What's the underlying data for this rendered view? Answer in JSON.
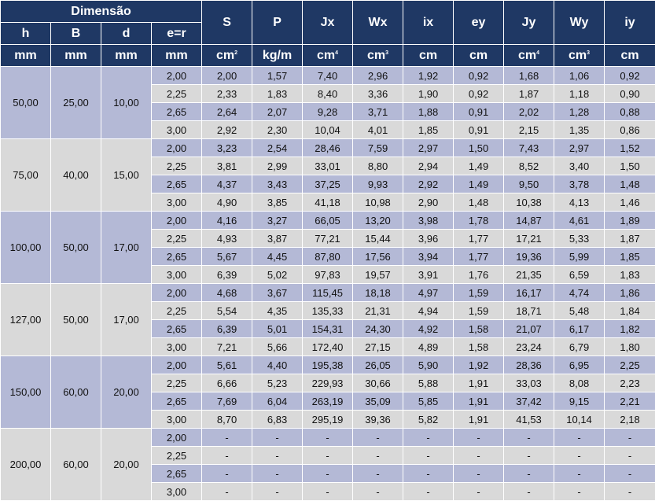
{
  "header": {
    "dimensao": "Dimensão",
    "props": [
      "S",
      "P",
      "Jx",
      "Wx",
      "ix",
      "ey",
      "Jy",
      "Wy",
      "iy"
    ],
    "dims": [
      "h",
      "B",
      "d",
      "e=r"
    ],
    "dim_units": [
      "mm",
      "mm",
      "mm",
      "mm"
    ],
    "prop_units": [
      {
        "base": "cm",
        "sup": "2"
      },
      {
        "base": "kg/m",
        "sup": ""
      },
      {
        "base": "cm",
        "sup": "4"
      },
      {
        "base": "cm",
        "sup": "3"
      },
      {
        "base": "cm",
        "sup": ""
      },
      {
        "base": "cm",
        "sup": ""
      },
      {
        "base": "cm",
        "sup": "4"
      },
      {
        "base": "cm",
        "sup": "3"
      },
      {
        "base": "cm",
        "sup": ""
      }
    ]
  },
  "groups": [
    {
      "h": "50,00",
      "B": "25,00",
      "d": "10,00",
      "rows": [
        {
          "e": "2,00",
          "v": [
            "2,00",
            "1,57",
            "7,40",
            "2,96",
            "1,92",
            "0,92",
            "1,68",
            "1,06",
            "0,92"
          ]
        },
        {
          "e": "2,25",
          "v": [
            "2,33",
            "1,83",
            "8,40",
            "3,36",
            "1,90",
            "0,92",
            "1,87",
            "1,18",
            "0,90"
          ]
        },
        {
          "e": "2,65",
          "v": [
            "2,64",
            "2,07",
            "9,28",
            "3,71",
            "1,88",
            "0,91",
            "2,02",
            "1,28",
            "0,88"
          ]
        },
        {
          "e": "3,00",
          "v": [
            "2,92",
            "2,30",
            "10,04",
            "4,01",
            "1,85",
            "0,91",
            "2,15",
            "1,35",
            "0,86"
          ]
        }
      ]
    },
    {
      "h": "75,00",
      "B": "40,00",
      "d": "15,00",
      "rows": [
        {
          "e": "2,00",
          "v": [
            "3,23",
            "2,54",
            "28,46",
            "7,59",
            "2,97",
            "1,50",
            "7,43",
            "2,97",
            "1,52"
          ]
        },
        {
          "e": "2,25",
          "v": [
            "3,81",
            "2,99",
            "33,01",
            "8,80",
            "2,94",
            "1,49",
            "8,52",
            "3,40",
            "1,50"
          ]
        },
        {
          "e": "2,65",
          "v": [
            "4,37",
            "3,43",
            "37,25",
            "9,93",
            "2,92",
            "1,49",
            "9,50",
            "3,78",
            "1,48"
          ]
        },
        {
          "e": "3,00",
          "v": [
            "4,90",
            "3,85",
            "41,18",
            "10,98",
            "2,90",
            "1,48",
            "10,38",
            "4,13",
            "1,46"
          ]
        }
      ]
    },
    {
      "h": "100,00",
      "B": "50,00",
      "d": "17,00",
      "rows": [
        {
          "e": "2,00",
          "v": [
            "4,16",
            "3,27",
            "66,05",
            "13,20",
            "3,98",
            "1,78",
            "14,87",
            "4,61",
            "1,89"
          ]
        },
        {
          "e": "2,25",
          "v": [
            "4,93",
            "3,87",
            "77,21",
            "15,44",
            "3,96",
            "1,77",
            "17,21",
            "5,33",
            "1,87"
          ]
        },
        {
          "e": "2,65",
          "v": [
            "5,67",
            "4,45",
            "87,80",
            "17,56",
            "3,94",
            "1,77",
            "19,36",
            "5,99",
            "1,85"
          ]
        },
        {
          "e": "3,00",
          "v": [
            "6,39",
            "5,02",
            "97,83",
            "19,57",
            "3,91",
            "1,76",
            "21,35",
            "6,59",
            "1,83"
          ]
        }
      ]
    },
    {
      "h": "127,00",
      "B": "50,00",
      "d": "17,00",
      "rows": [
        {
          "e": "2,00",
          "v": [
            "4,68",
            "3,67",
            "115,45",
            "18,18",
            "4,97",
            "1,59",
            "16,17",
            "4,74",
            "1,86"
          ]
        },
        {
          "e": "2,25",
          "v": [
            "5,54",
            "4,35",
            "135,33",
            "21,31",
            "4,94",
            "1,59",
            "18,71",
            "5,48",
            "1,84"
          ]
        },
        {
          "e": "2,65",
          "v": [
            "6,39",
            "5,01",
            "154,31",
            "24,30",
            "4,92",
            "1,58",
            "21,07",
            "6,17",
            "1,82"
          ]
        },
        {
          "e": "3,00",
          "v": [
            "7,21",
            "5,66",
            "172,40",
            "27,15",
            "4,89",
            "1,58",
            "23,24",
            "6,79",
            "1,80"
          ]
        }
      ]
    },
    {
      "h": "150,00",
      "B": "60,00",
      "d": "20,00",
      "rows": [
        {
          "e": "2,00",
          "v": [
            "5,61",
            "4,40",
            "195,38",
            "26,05",
            "5,90",
            "1,92",
            "28,36",
            "6,95",
            "2,25"
          ]
        },
        {
          "e": "2,25",
          "v": [
            "6,66",
            "5,23",
            "229,93",
            "30,66",
            "5,88",
            "1,91",
            "33,03",
            "8,08",
            "2,23"
          ]
        },
        {
          "e": "2,65",
          "v": [
            "7,69",
            "6,04",
            "263,19",
            "35,09",
            "5,85",
            "1,91",
            "37,42",
            "9,15",
            "2,21"
          ]
        },
        {
          "e": "3,00",
          "v": [
            "8,70",
            "6,83",
            "295,19",
            "39,36",
            "5,82",
            "1,91",
            "41,53",
            "10,14",
            "2,18"
          ]
        }
      ]
    },
    {
      "h": "200,00",
      "B": "60,00",
      "d": "20,00",
      "rows": [
        {
          "e": "2,00",
          "v": [
            "-",
            "-",
            "-",
            "-",
            "-",
            "-",
            "-",
            "-",
            "-"
          ]
        },
        {
          "e": "2,25",
          "v": [
            "-",
            "-",
            "-",
            "-",
            "-",
            "-",
            "-",
            "-",
            "-"
          ]
        },
        {
          "e": "2,65",
          "v": [
            "-",
            "-",
            "-",
            "-",
            "-",
            "-",
            "-",
            "-",
            "-"
          ]
        },
        {
          "e": "3,00",
          "v": [
            "-",
            "-",
            "-",
            "-",
            "-",
            "-",
            "-",
            "-",
            "-"
          ]
        }
      ]
    }
  ]
}
